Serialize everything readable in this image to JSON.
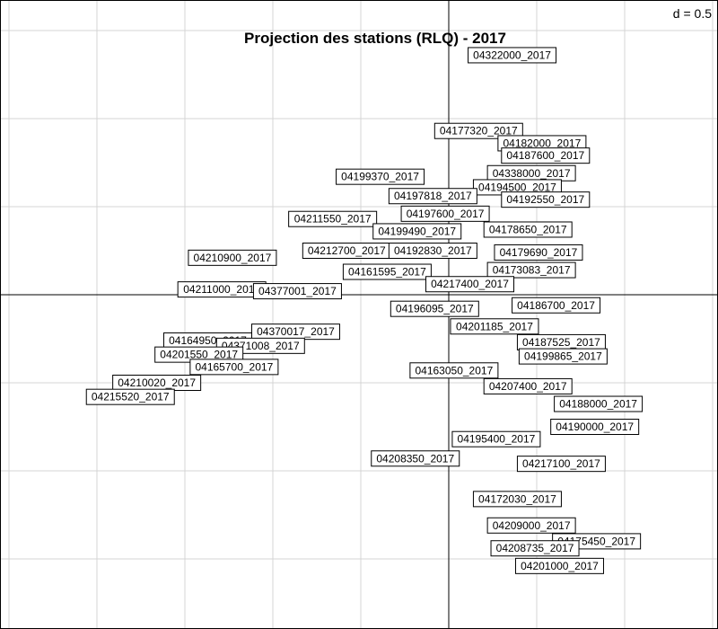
{
  "chart_data": {
    "type": "scatter",
    "title": "Projection des stations (RLQ) - 2017",
    "grid_scale_label": "d = 0.5",
    "grid_step": 0.5,
    "grid": true,
    "xlim": [
      -2.5,
      1.5
    ],
    "ylim": [
      -1.85,
      1.65
    ],
    "points": [
      {
        "label": "04322000_2017",
        "x": 0.36,
        "y": 1.36
      },
      {
        "label": "04177320_2017",
        "x": 0.17,
        "y": 0.93
      },
      {
        "label": "04182000_2017",
        "x": 0.53,
        "y": 0.86
      },
      {
        "label": "04187600_2017",
        "x": 0.55,
        "y": 0.79
      },
      {
        "label": "04338000_2017",
        "x": 0.47,
        "y": 0.69
      },
      {
        "label": "04199370_2017",
        "x": -0.39,
        "y": 0.67
      },
      {
        "label": "04194500_2017",
        "x": 0.39,
        "y": 0.61
      },
      {
        "label": "04197818_2017",
        "x": -0.09,
        "y": 0.56
      },
      {
        "label": "04192550_2017",
        "x": 0.55,
        "y": 0.54
      },
      {
        "label": "04197600_2017",
        "x": -0.02,
        "y": 0.46
      },
      {
        "label": "04211550_2017",
        "x": -0.66,
        "y": 0.43
      },
      {
        "label": "04199490_2017",
        "x": -0.18,
        "y": 0.36
      },
      {
        "label": "04178650_2017",
        "x": 0.45,
        "y": 0.37
      },
      {
        "label": "04212700_2017",
        "x": -0.58,
        "y": 0.25
      },
      {
        "label": "04192830_2017",
        "x": -0.09,
        "y": 0.25
      },
      {
        "label": "04179690_2017",
        "x": 0.51,
        "y": 0.24
      },
      {
        "label": "04210900_2017",
        "x": -1.23,
        "y": 0.21
      },
      {
        "label": "04161595_2017",
        "x": -0.35,
        "y": 0.13
      },
      {
        "label": "04173083_2017",
        "x": 0.47,
        "y": 0.14
      },
      {
        "label": "04217400_2017",
        "x": 0.12,
        "y": 0.06
      },
      {
        "label": "04211000_2017",
        "x": -1.29,
        "y": 0.03
      },
      {
        "label": "04377001_2017",
        "x": -0.86,
        "y": 0.02
      },
      {
        "label": "04186700_2017",
        "x": 0.61,
        "y": -0.06
      },
      {
        "label": "04196095_2017",
        "x": -0.08,
        "y": -0.08
      },
      {
        "label": "04201185_2017",
        "x": 0.26,
        "y": -0.18
      },
      {
        "label": "04370017_2017",
        "x": -0.87,
        "y": -0.21
      },
      {
        "label": "04164950_2017",
        "x": -1.37,
        "y": -0.26
      },
      {
        "label": "04371008_2017",
        "x": -1.07,
        "y": -0.29
      },
      {
        "label": "04187525_2017",
        "x": 0.64,
        "y": -0.27
      },
      {
        "label": "04201550_2017",
        "x": -1.42,
        "y": -0.34
      },
      {
        "label": "04199865_2017",
        "x": 0.65,
        "y": -0.35
      },
      {
        "label": "04165700_2017",
        "x": -1.22,
        "y": -0.41
      },
      {
        "label": "04163050_2017",
        "x": 0.03,
        "y": -0.43
      },
      {
        "label": "04210020_2017",
        "x": -1.66,
        "y": -0.5
      },
      {
        "label": "04207400_2017",
        "x": 0.45,
        "y": -0.52
      },
      {
        "label": "04215520_2017",
        "x": -1.81,
        "y": -0.58
      },
      {
        "label": "04188000_2017",
        "x": 0.85,
        "y": -0.62
      },
      {
        "label": "04190000_2017",
        "x": 0.83,
        "y": -0.75
      },
      {
        "label": "04195400_2017",
        "x": 0.27,
        "y": -0.82
      },
      {
        "label": "04208350_2017",
        "x": -0.19,
        "y": -0.93
      },
      {
        "label": "04217100_2017",
        "x": 0.64,
        "y": -0.96
      },
      {
        "label": "04172030_2017",
        "x": 0.39,
        "y": -1.16
      },
      {
        "label": "04209000_2017",
        "x": 0.47,
        "y": -1.31
      },
      {
        "label": "04175450_2017",
        "x": 0.84,
        "y": -1.4
      },
      {
        "label": "04208735_2017",
        "x": 0.49,
        "y": -1.44
      },
      {
        "label": "04201000_2017",
        "x": 0.63,
        "y": -1.54
      }
    ]
  }
}
